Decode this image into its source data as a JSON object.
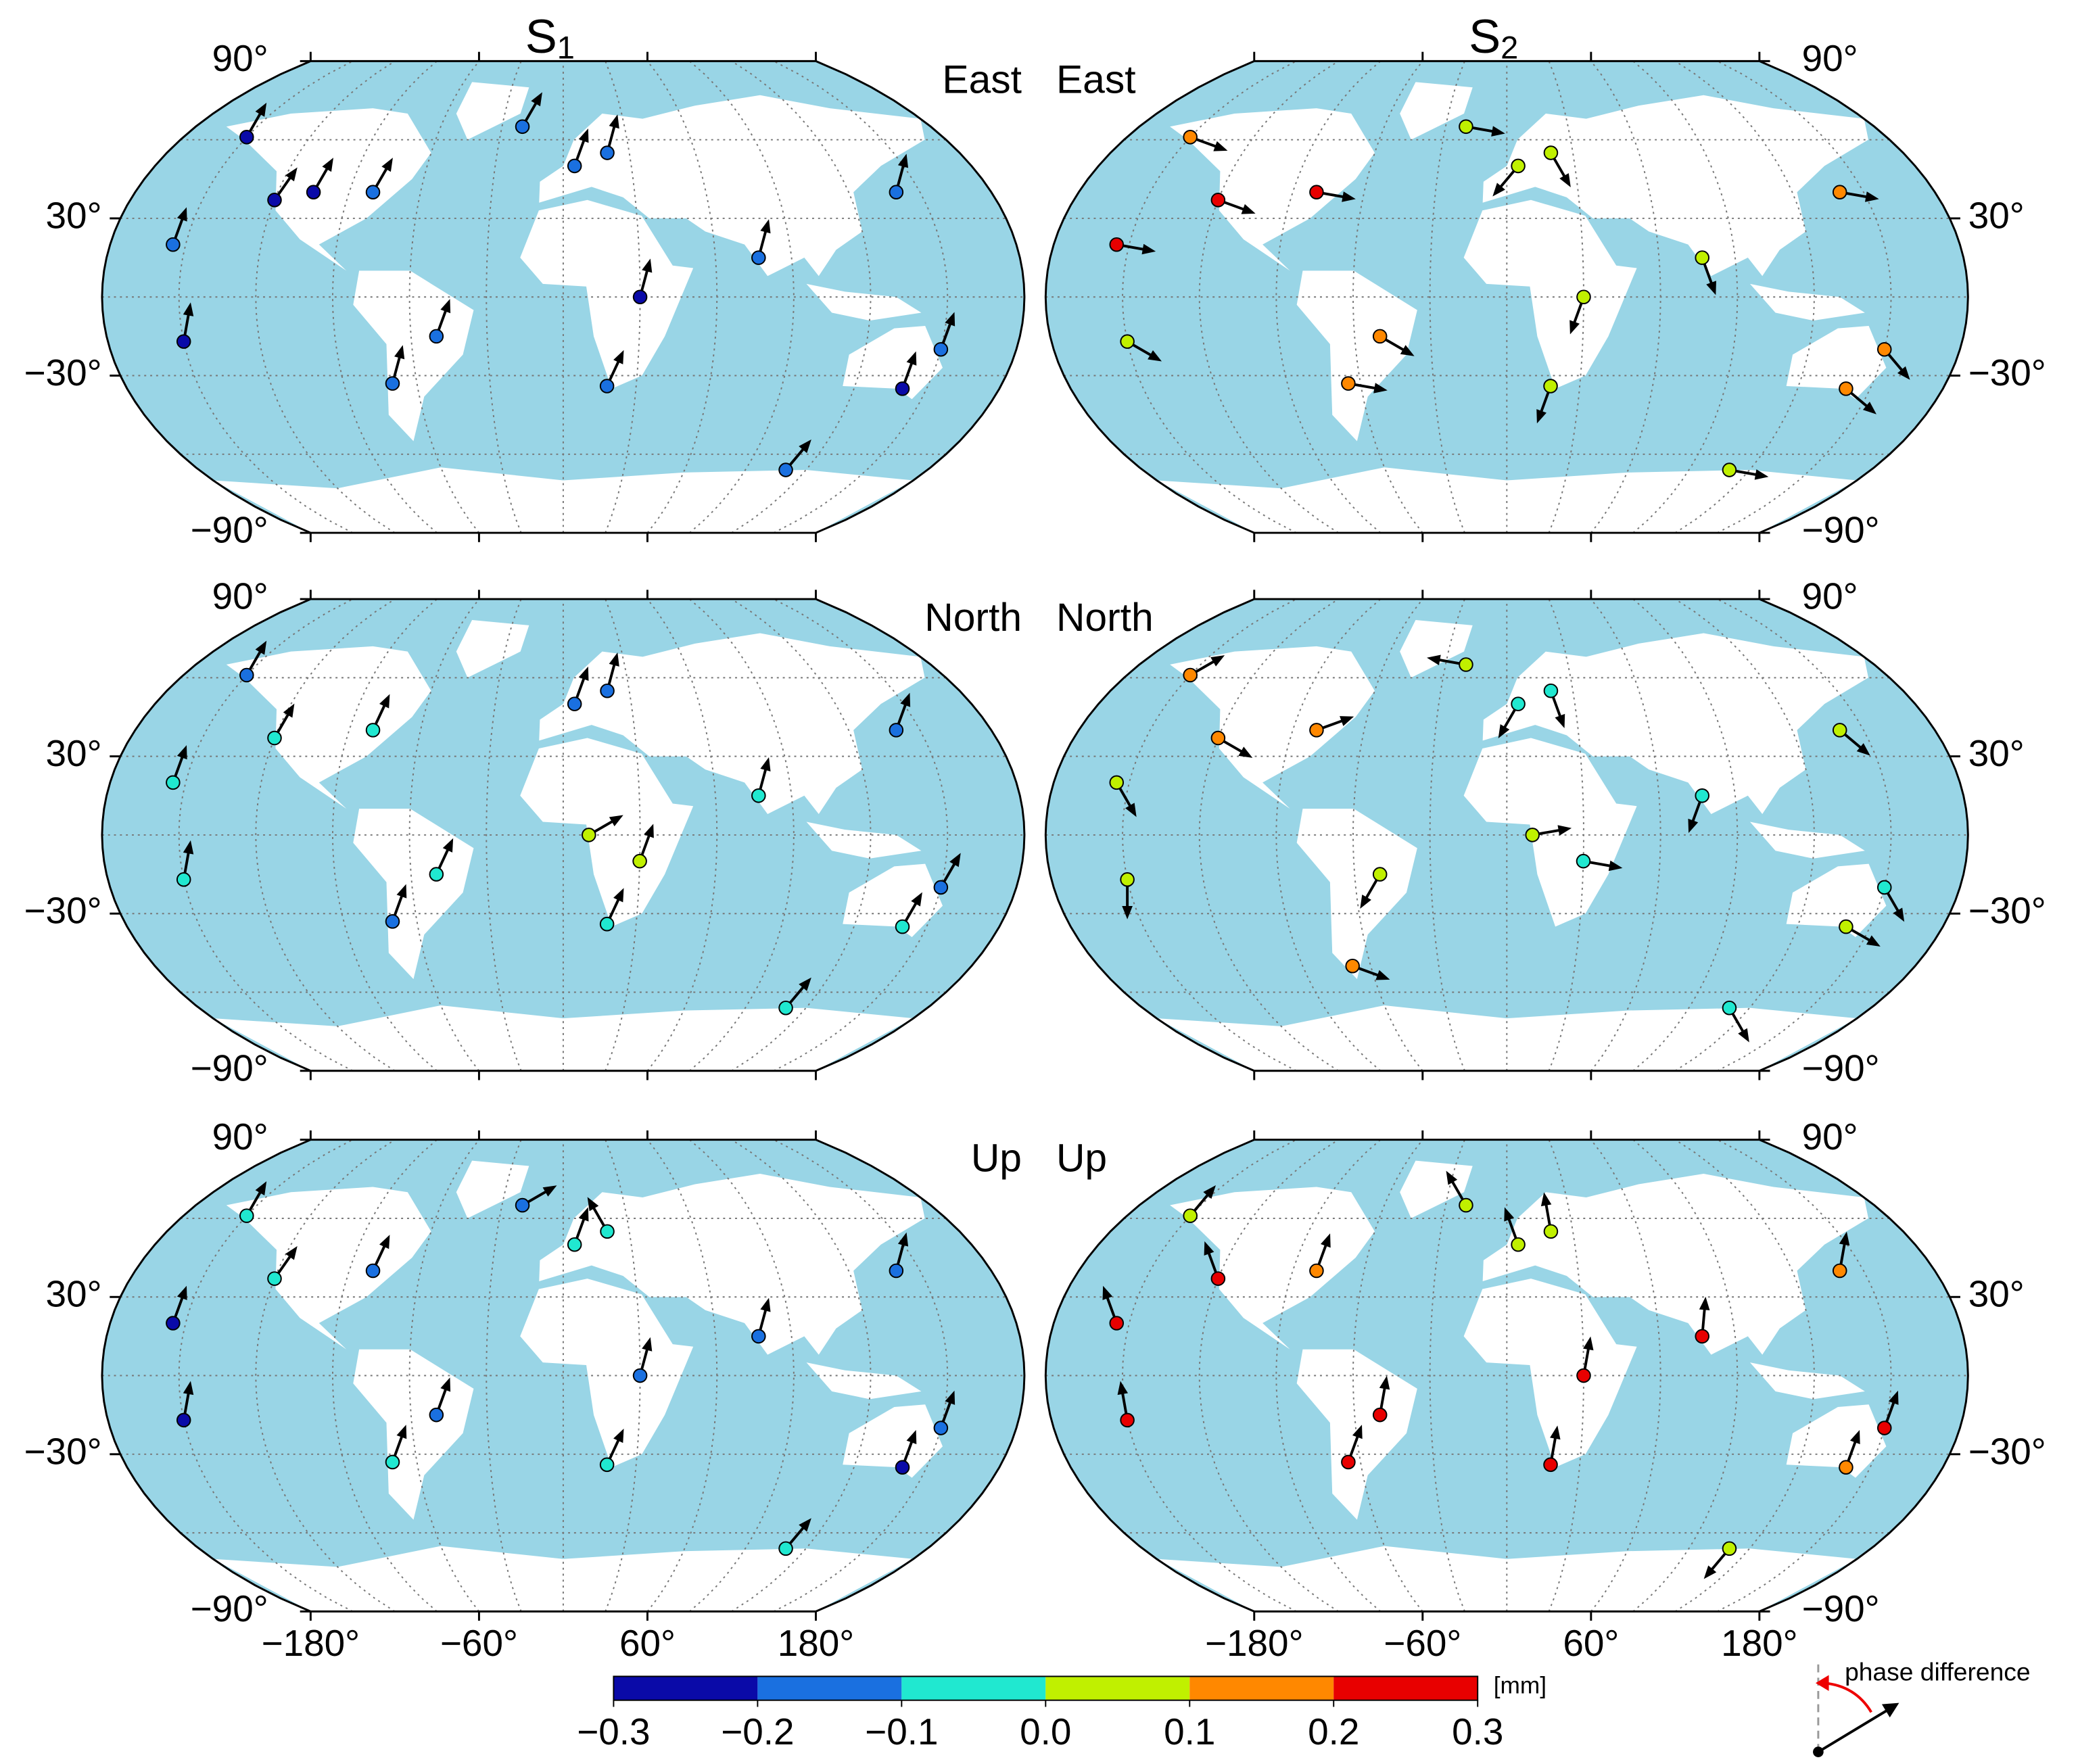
{
  "columns": [
    {
      "symbol": "S",
      "subscript": "1"
    },
    {
      "symbol": "S",
      "subscript": "2"
    }
  ],
  "yticks": [
    {
      "value": 90,
      "label": "90°"
    },
    {
      "value": 30,
      "label": "30°"
    },
    {
      "value": -30,
      "label": "−30°"
    },
    {
      "value": -90,
      "label": "−90°"
    }
  ],
  "xticks": [
    {
      "value": -180,
      "label": "−180°"
    },
    {
      "value": -60,
      "label": "−60°"
    },
    {
      "value": 60,
      "label": "60°"
    },
    {
      "value": 180,
      "label": "180°"
    }
  ],
  "colorbar": {
    "ticks": [
      {
        "value": -0.3,
        "label": "−0.3"
      },
      {
        "value": -0.2,
        "label": "−0.2"
      },
      {
        "value": -0.1,
        "label": "−0.1"
      },
      {
        "value": 0,
        "label": "0.0"
      },
      0.1,
      0.2,
      0.3
    ],
    "colors": [
      "#0a0aa8",
      "#1a70e0",
      "#20e8d0",
      "#c0f000",
      "#ff8800",
      "#e80000"
    ],
    "unit": "[mm]"
  },
  "legend": {
    "label": "phase difference"
  },
  "panels": [
    {
      "component": "East",
      "stations": [
        [
          -150,
          61,
          -0.25,
          30
        ],
        [
          -120,
          37,
          -0.25,
          35
        ],
        [
          -105,
          40,
          -0.25,
          30
        ],
        [
          -80,
          40,
          -0.15,
          30
        ],
        [
          -50,
          -15,
          -0.15,
          20
        ],
        [
          -70,
          -33,
          -0.15,
          15
        ],
        [
          -155,
          20,
          -0.15,
          20
        ],
        [
          -150,
          -17,
          -0.25,
          10
        ],
        [
          5,
          50,
          -0.15,
          20
        ],
        [
          20,
          55,
          -0.15,
          15
        ],
        [
          30,
          0,
          -0.25,
          15
        ],
        [
          18,
          -34,
          -0.15,
          25
        ],
        [
          77,
          15,
          -0.15,
          15
        ],
        [
          140,
          -35,
          -0.25,
          20
        ],
        [
          150,
          -20,
          -0.15,
          20
        ],
        [
          110,
          -66,
          -0.15,
          40
        ],
        [
          140,
          40,
          -0.15,
          15
        ],
        [
          -20,
          65,
          -0.15,
          30
        ]
      ]
    },
    {
      "component": "East",
      "stations": [
        [
          -150,
          61,
          0.15,
          110
        ],
        [
          -120,
          37,
          0.25,
          110
        ],
        [
          -80,
          40,
          0.25,
          100
        ],
        [
          -155,
          20,
          0.25,
          100
        ],
        [
          -150,
          -17,
          0.05,
          120
        ],
        [
          -50,
          -15,
          0.15,
          120
        ],
        [
          -65,
          -33,
          0.15,
          100
        ],
        [
          5,
          50,
          0.05,
          220
        ],
        [
          20,
          55,
          0.05,
          150
        ],
        [
          30,
          0,
          0.05,
          200
        ],
        [
          18,
          -34,
          0.05,
          200
        ],
        [
          77,
          15,
          0.05,
          160
        ],
        [
          140,
          -35,
          0.15,
          130
        ],
        [
          150,
          -20,
          0.15,
          140
        ],
        [
          140,
          40,
          0.15,
          100
        ],
        [
          110,
          -66,
          0.05,
          100
        ],
        [
          -20,
          65,
          0.05,
          100
        ]
      ]
    },
    {
      "component": "North",
      "stations": [
        [
          -150,
          61,
          -0.15,
          30
        ],
        [
          -120,
          37,
          -0.05,
          30
        ],
        [
          -80,
          40,
          -0.05,
          25
        ],
        [
          -155,
          20,
          -0.05,
          20
        ],
        [
          -150,
          -17,
          -0.05,
          10
        ],
        [
          -50,
          -15,
          -0.05,
          25
        ],
        [
          -70,
          -33,
          -0.15,
          20
        ],
        [
          5,
          50,
          -0.15,
          20
        ],
        [
          20,
          55,
          -0.15,
          15
        ],
        [
          10,
          0,
          0.05,
          60
        ],
        [
          30,
          -10,
          0.05,
          20
        ],
        [
          18,
          -34,
          -0.05,
          25
        ],
        [
          77,
          15,
          -0.05,
          15
        ],
        [
          140,
          -35,
          -0.05,
          30
        ],
        [
          150,
          -20,
          -0.15,
          30
        ],
        [
          110,
          -66,
          -0.05,
          40
        ],
        [
          140,
          40,
          -0.15,
          20
        ]
      ]
    },
    {
      "component": "North",
      "stations": [
        [
          -150,
          61,
          0.15,
          60
        ],
        [
          -120,
          37,
          0.15,
          120
        ],
        [
          -80,
          40,
          0.15,
          70
        ],
        [
          -155,
          20,
          0.05,
          150
        ],
        [
          -150,
          -17,
          0.05,
          180
        ],
        [
          -50,
          -15,
          0.05,
          210
        ],
        [
          -68,
          -50,
          0.15,
          110
        ],
        [
          5,
          50,
          -0.05,
          210
        ],
        [
          20,
          55,
          -0.05,
          160
        ],
        [
          10,
          0,
          0.05,
          80
        ],
        [
          30,
          -10,
          -0.05,
          100
        ],
        [
          77,
          15,
          -0.05,
          200
        ],
        [
          140,
          -35,
          0.05,
          120
        ],
        [
          150,
          -20,
          -0.05,
          150
        ],
        [
          140,
          40,
          0.05,
          130
        ],
        [
          110,
          -66,
          -0.05,
          150
        ],
        [
          -20,
          65,
          0.05,
          280
        ]
      ]
    },
    {
      "component": "Up",
      "stations": [
        [
          -150,
          61,
          -0.05,
          30
        ],
        [
          -120,
          37,
          -0.05,
          35
        ],
        [
          -80,
          40,
          -0.15,
          25
        ],
        [
          -155,
          20,
          -0.25,
          20
        ],
        [
          -150,
          -17,
          -0.25,
          10
        ],
        [
          -50,
          -15,
          -0.15,
          20
        ],
        [
          -70,
          -33,
          -0.05,
          20
        ],
        [
          5,
          50,
          -0.05,
          20
        ],
        [
          20,
          55,
          -0.05,
          330
        ],
        [
          30,
          0,
          -0.15,
          15
        ],
        [
          18,
          -34,
          -0.05,
          25
        ],
        [
          77,
          15,
          -0.15,
          15
        ],
        [
          140,
          -35,
          -0.25,
          20
        ],
        [
          150,
          -20,
          -0.15,
          20
        ],
        [
          110,
          -66,
          -0.05,
          40
        ],
        [
          140,
          40,
          -0.15,
          15
        ],
        [
          -20,
          65,
          -0.15,
          60
        ]
      ]
    },
    {
      "component": "Up",
      "stations": [
        [
          -150,
          61,
          0.05,
          40
        ],
        [
          -120,
          37,
          0.25,
          340
        ],
        [
          -80,
          40,
          0.15,
          20
        ],
        [
          -155,
          20,
          0.25,
          340
        ],
        [
          -150,
          -17,
          0.25,
          350
        ],
        [
          -50,
          -15,
          0.25,
          10
        ],
        [
          -65,
          -33,
          0.25,
          20
        ],
        [
          5,
          50,
          0.05,
          340
        ],
        [
          20,
          55,
          0.05,
          350
        ],
        [
          30,
          0,
          0.25,
          10
        ],
        [
          18,
          -34,
          0.25,
          10
        ],
        [
          77,
          15,
          0.25,
          5
        ],
        [
          140,
          -35,
          0.15,
          20
        ],
        [
          150,
          -20,
          0.25,
          20
        ],
        [
          140,
          40,
          0.15,
          10
        ],
        [
          110,
          -66,
          0.05,
          220
        ],
        [
          -20,
          65,
          0.05,
          330
        ]
      ]
    }
  ]
}
